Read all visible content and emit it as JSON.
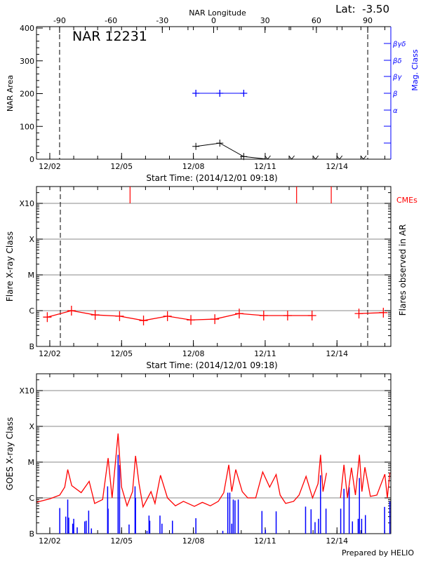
{
  "header": {
    "lat_label": "Lat:  -3.50"
  },
  "colors": {
    "axis": "#000000",
    "grid": "#a0a0a0",
    "flare": "#ff0000",
    "long_channel": "#ff0000",
    "short_channel": "#0000ff",
    "mag_class": "#0000ff",
    "cme": "#ff0000"
  },
  "chart_data": [
    {
      "type": "line",
      "title": "NAR 12231",
      "ylabel": "NAR Area",
      "xlabel": "Start Time: (2014/12/01 09:18)",
      "xlim": [
        "2014-12-01T10:40",
        "2014-12-16T06:00"
      ],
      "ylim": [
        0,
        400
      ],
      "y_ticks": [
        "0",
        "100",
        "200",
        "300",
        "400"
      ],
      "x_ticks": [
        "12/02",
        "12/05",
        "12/08",
        "12/11",
        "12/14"
      ],
      "top_axis": {
        "label": "NAR Longitude",
        "range": [
          -103.5,
          103.5
        ],
        "ticks": [
          "-90",
          "-60",
          "-30",
          "0",
          "30",
          "60",
          "90"
        ]
      },
      "limb_markers_longitude": [
        -90,
        90
      ],
      "right_axis": {
        "label": "Mag. Class",
        "ticks": [
          "",
          "",
          "α",
          "β",
          "βγ",
          "βδ",
          "βγδ"
        ]
      },
      "area_series": {
        "x": [
          "2014-12-08T02:30",
          "2014-12-09T02:30",
          "2014-12-10T02:30",
          "2014-12-11T02:30",
          "2014-12-12T02:30",
          "2014-12-13T02:30",
          "2014-12-14T02:30",
          "2014-12-15T02:30"
        ],
        "y": [
          39,
          49,
          8,
          0,
          0,
          0,
          0,
          0
        ]
      },
      "mag_class_series": {
        "x": [
          "2014-12-08T02:30",
          "2014-12-09T02:30",
          "2014-12-10T02:30"
        ],
        "class": [
          "β",
          "β",
          "β"
        ]
      }
    },
    {
      "type": "line",
      "ylabel": "Flare X-ray Class",
      "right_label": "Flares observed in AR",
      "xlabel": "Start Time: (2014/12/01 09:18)",
      "xlim": [
        "2014-12-01T10:40",
        "2014-12-16T06:00"
      ],
      "yscale": "log",
      "ylim": [
        1e-07,
        0.003
      ],
      "y_ticks": [
        "B",
        "C",
        "M",
        "X",
        "X10"
      ],
      "x_ticks": [
        "12/02",
        "12/05",
        "12/08",
        "12/11",
        "12/14"
      ],
      "grid": true,
      "flares": {
        "x": [
          "2014-12-01T21:30",
          "2014-12-02T21:45",
          "2014-12-03T21:30",
          "2014-12-04T22:00",
          "2014-12-05T22:00",
          "2014-12-06T22:00",
          "2014-12-07T21:30",
          "2014-12-08T21:30",
          "2014-12-09T22:00",
          "2014-12-10T22:30",
          "2014-12-11T22:30",
          "2014-12-12T23:00",
          "2014-12-14T22:00",
          "2014-12-15T22:30"
        ],
        "y": [
          6.6e-07,
          1e-06,
          7.6e-07,
          7e-07,
          5.3e-07,
          7e-07,
          5.5e-07,
          5.8e-07,
          8.3e-07,
          7.3e-07,
          7.3e-07,
          7.3e-07,
          8.3e-07,
          8.8e-07
        ]
      },
      "cme_label": "CMEs",
      "cmes": [
        "2014-12-05T08:30",
        "2014-12-12T07:30",
        "2014-12-13T18:15"
      ]
    },
    {
      "type": "line",
      "ylabel": "GOES X-ray Class",
      "xlim": [
        "2014-12-01T10:40",
        "2014-12-16T06:00"
      ],
      "yscale": "log",
      "ylim": [
        1e-07,
        0.003
      ],
      "y_ticks": [
        "B",
        "C",
        "M",
        "X",
        "X10"
      ],
      "x_ticks": [
        "12/02",
        "12/05",
        "12/08",
        "12/11",
        "12/14"
      ],
      "grid": true,
      "series": [
        {
          "color": "#ff0000",
          "segments": [
            {
              "x": [
                "2014-12-01T11:00",
                "2014-12-02T00:30",
                "2014-12-02T10:00",
                "2014-12-02T15:00",
                "2014-12-02T18:00",
                "2014-12-02T22:00",
                "2014-12-03T07:30",
                "2014-12-03T15:30",
                "2014-12-03T21:00",
                "2014-12-04T05:00",
                "2014-12-04T10:30",
                "2014-12-04T14:30",
                "2014-12-04T20:30",
                "2014-12-05T00:00",
                "2014-12-05T05:30",
                "2014-12-05T11:00",
                "2014-12-05T14:00",
                "2014-12-05T17:30",
                "2014-12-05T21:30",
                "2014-12-06T05:30",
                "2014-12-06T09:30",
                "2014-12-06T15:00",
                "2014-12-06T22:00",
                "2014-12-07T06:00",
                "2014-12-07T14:00",
                "2014-12-08T01:00",
                "2014-12-08T09:00",
                "2014-12-08T17:00",
                "2014-12-09T01:00",
                "2014-12-09T06:30",
                "2014-12-09T11:30",
                "2014-12-09T14:30",
                "2014-12-09T18:30",
                "2014-12-10T01:00",
                "2014-12-10T06:30",
                "2014-12-10T14:30",
                "2014-12-10T21:30",
                "2014-12-11T04:30",
                "2014-12-11T11:00",
                "2014-12-11T15:00",
                "2014-12-11T20:30",
                "2014-12-12T04:30",
                "2014-12-12T10:00",
                "2014-12-12T17:00",
                "2014-12-12T23:30",
                "2014-12-13T05:00",
                "2014-12-13T07:30",
                "2014-12-13T10:00",
                "2014-12-13T13:30"
              ],
              "y": [
                7.6e-07,
                9.5e-07,
                1.2e-06,
                2e-06,
                6.2e-06,
                2.2e-06,
                1.4e-06,
                2.9e-06,
                7e-07,
                9e-07,
                1.3e-05,
                1e-06,
                6.3e-05,
                2e-06,
                6e-07,
                1.5e-06,
                1.5e-05,
                2.5e-06,
                5.6e-07,
                1.5e-06,
                7e-07,
                4.3e-06,
                1e-06,
                6e-07,
                8e-07,
                5.8e-07,
                7.5e-07,
                6e-07,
                8e-07,
                1.4e-06,
                8.4e-06,
                1.5e-06,
                6.2e-06,
                1.5e-06,
                1e-06,
                1e-06,
                5.3e-06,
                2e-06,
                4.5e-06,
                1.2e-06,
                7e-07,
                8e-07,
                1.2e-06,
                4e-06,
                1e-06,
                2.5e-06,
                1.6e-05,
                1.5e-06,
                5e-06
              ]
            },
            {
              "x": [
                "2014-12-14T03:30",
                "2014-12-14T07:00",
                "2014-12-14T10:30",
                "2014-12-14T14:30",
                "2014-12-14T18:30",
                "2014-12-14T22:30",
                "2014-12-15T01:00",
                "2014-12-15T04:00",
                "2014-12-15T09:30",
                "2014-12-15T16:00",
                "2014-12-16T00:00",
                "2014-12-16T02:30",
                "2014-12-16T05:00"
              ],
              "y": [
                1e-06,
                8.4e-06,
                1e-06,
                7e-06,
                1.2e-06,
                1.6e-05,
                1.5e-06,
                7.2e-06,
                1.1e-06,
                1.2e-06,
                4.6e-06,
                1e-06,
                5e-06
              ]
            }
          ]
        },
        {
          "color": "#0000ff",
          "style": "spikes",
          "x": [
            "2014-12-02T10:00",
            "2014-12-02T16:00",
            "2014-12-02T18:00",
            "2014-12-02T19:00",
            "2014-12-02T23:00",
            "2014-12-03T00:00",
            "2014-12-03T03:30",
            "2014-12-03T11:00",
            "2014-12-03T12:30",
            "2014-12-03T15:00",
            "2014-12-03T17:45",
            "2014-12-04T10:00",
            "2014-12-04T10:30",
            "2014-12-04T20:30",
            "2014-12-04T22:00",
            "2014-12-05T07:30",
            "2014-12-05T13:30",
            "2014-12-05T14:00",
            "2014-12-06T01:30",
            "2014-12-06T03:30",
            "2014-12-06T04:15",
            "2014-12-06T14:30",
            "2014-12-06T16:30",
            "2014-12-07T03:00",
            "2014-12-08T02:30",
            "2014-12-09T05:30",
            "2014-12-09T10:30",
            "2014-12-09T12:30",
            "2014-12-09T14:30",
            "2014-12-09T16:00",
            "2014-12-09T17:45",
            "2014-12-09T21:00",
            "2014-12-10T20:45",
            "2014-12-11T00:15",
            "2014-12-11T11:00",
            "2014-12-12T16:30",
            "2014-12-12T22:00",
            "2014-12-13T02:00",
            "2014-12-13T05:30",
            "2014-12-13T07:30",
            "2014-12-13T13:00",
            "2014-12-14T03:45",
            "2014-12-14T07:00",
            "2014-12-14T12:15",
            "2014-12-14T15:30",
            "2014-12-14T21:15",
            "2014-12-14T22:30",
            "2014-12-15T00:45",
            "2014-12-15T04:30",
            "2014-12-15T23:45",
            "2014-12-16T05:00"
          ],
          "y": [
            5.2e-07,
            3e-07,
            9e-07,
            2.8e-07,
            1.9e-07,
            2.6e-07,
            1.5e-07,
            2.2e-07,
            2.3e-07,
            4.4e-07,
            1.4e-07,
            2.1e-06,
            5e-07,
            1.6e-05,
            8.3e-06,
            1.8e-07,
            2.1e-06,
            1e-06,
            1.2e-07,
            3.2e-07,
            2.3e-07,
            3.2e-07,
            1.9e-07,
            2.3e-07,
            2.7e-07,
            1.2e-07,
            1.4e-06,
            1.4e-06,
            1.9e-07,
            9e-07,
            8.5e-07,
            9e-07,
            4.3e-07,
            1.3e-07,
            4.2e-07,
            5.7e-07,
            4.8e-07,
            2.1e-07,
            2.6e-07,
            4.3e-06,
            5e-07,
            5e-07,
            1.8e-06,
            2e-06,
            2.2e-07,
            2.6e-07,
            3.6e-06,
            2.6e-07,
            3.3e-07,
            5.6e-07,
            8e-07
          ]
        }
      ],
      "footer": "Prepared by HELIO"
    }
  ]
}
